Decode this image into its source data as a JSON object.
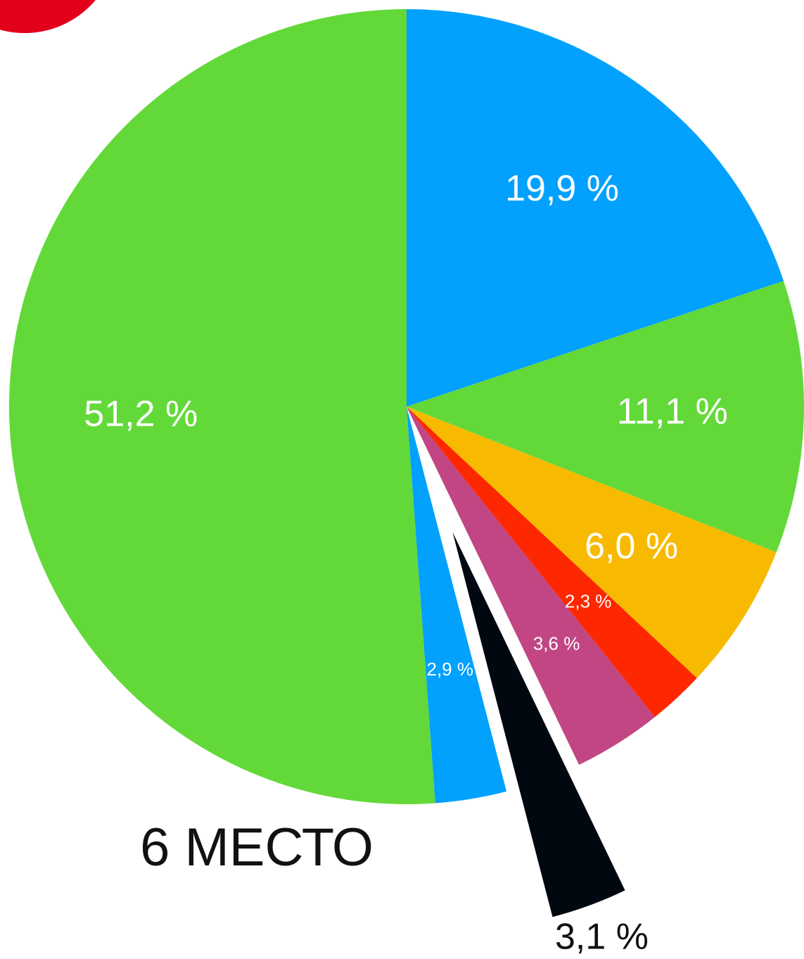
{
  "chart_data": {
    "type": "pie",
    "annotation": "6 МЕСТО",
    "values": [
      19.9,
      11.1,
      6.0,
      2.3,
      3.6,
      3.1,
      2.9,
      51.2
    ],
    "value_labels": [
      "19,9 %",
      "11,1 %",
      "6,0 %",
      "2,3 %",
      "3,6 %",
      "3,1 %",
      "2,9 %",
      "51,2 %"
    ],
    "colors": [
      "#03a1fe",
      "#63d939",
      "#f8ba00",
      "#fe2800",
      "#c14683",
      "#020810",
      "#03a1fe",
      "#63d939"
    ],
    "explode": [
      false,
      false,
      false,
      false,
      false,
      true,
      false,
      false
    ]
  }
}
